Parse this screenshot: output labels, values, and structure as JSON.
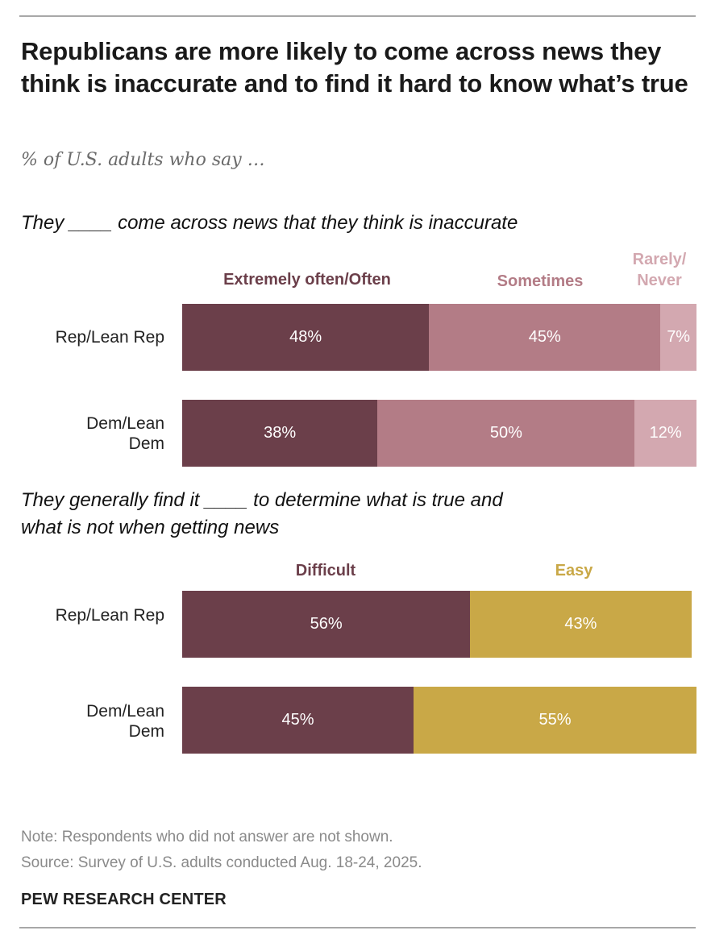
{
  "title": "Republicans are more likely to come across news they think is inaccurate and to find it hard to know what’s true",
  "subtitle": "% of U.S. adults who say …",
  "colors": {
    "often": "#6b3f4a",
    "sometimes": "#b37c86",
    "rarely": "#d3a8b0",
    "difficult": "#6b3f4a",
    "easy": "#c9a847",
    "header_often": "#6b3f4a",
    "header_sometimes": "#b37c86",
    "header_rarely": "#d3a8b0",
    "header_easy": "#c9a847"
  },
  "chart_data": [
    {
      "type": "bar",
      "orientation": "horizontal",
      "stacked": true,
      "title": "They ____ come across news that they think is inaccurate",
      "categories": [
        "Rep/Lean Rep",
        "Dem/Lean Dem"
      ],
      "category_labels": [
        "Rep/Lean Rep",
        "Dem/Lean\nDem"
      ],
      "series": [
        {
          "name": "Extremely often/Often",
          "values": [
            48,
            38
          ],
          "labels": [
            "48%",
            "38%"
          ]
        },
        {
          "name": "Sometimes",
          "values": [
            45,
            50
          ],
          "labels": [
            "45%",
            "50%"
          ]
        },
        {
          "name": "Rarely/Never",
          "header_lines": [
            "Rarely/",
            "Never"
          ],
          "values": [
            7,
            12
          ],
          "labels": [
            "7%",
            "12%"
          ]
        }
      ],
      "xlim": [
        0,
        100
      ]
    },
    {
      "type": "bar",
      "orientation": "horizontal",
      "stacked": true,
      "title": "They generally find it ____ to determine what is true and what is not when getting news",
      "title_lines": [
        "They generally find it ____ to determine what is true and",
        "what is not when getting news"
      ],
      "categories": [
        "Rep/Lean Rep",
        "Dem/Lean Dem"
      ],
      "category_labels": [
        "Rep/Lean Rep",
        "Dem/Lean\nDem"
      ],
      "series": [
        {
          "name": "Difficult",
          "values": [
            56,
            45
          ],
          "labels": [
            "56%",
            "45%"
          ]
        },
        {
          "name": "Easy",
          "values": [
            43,
            55
          ],
          "labels": [
            "43%",
            "55%"
          ]
        }
      ],
      "xlim": [
        0,
        100
      ]
    }
  ],
  "footer": {
    "note": "Note: Respondents who did not answer are not shown.",
    "source": "Source: Survey of U.S. adults conducted Aug. 18-24, 2025.",
    "brand": "PEW RESEARCH CENTER"
  }
}
